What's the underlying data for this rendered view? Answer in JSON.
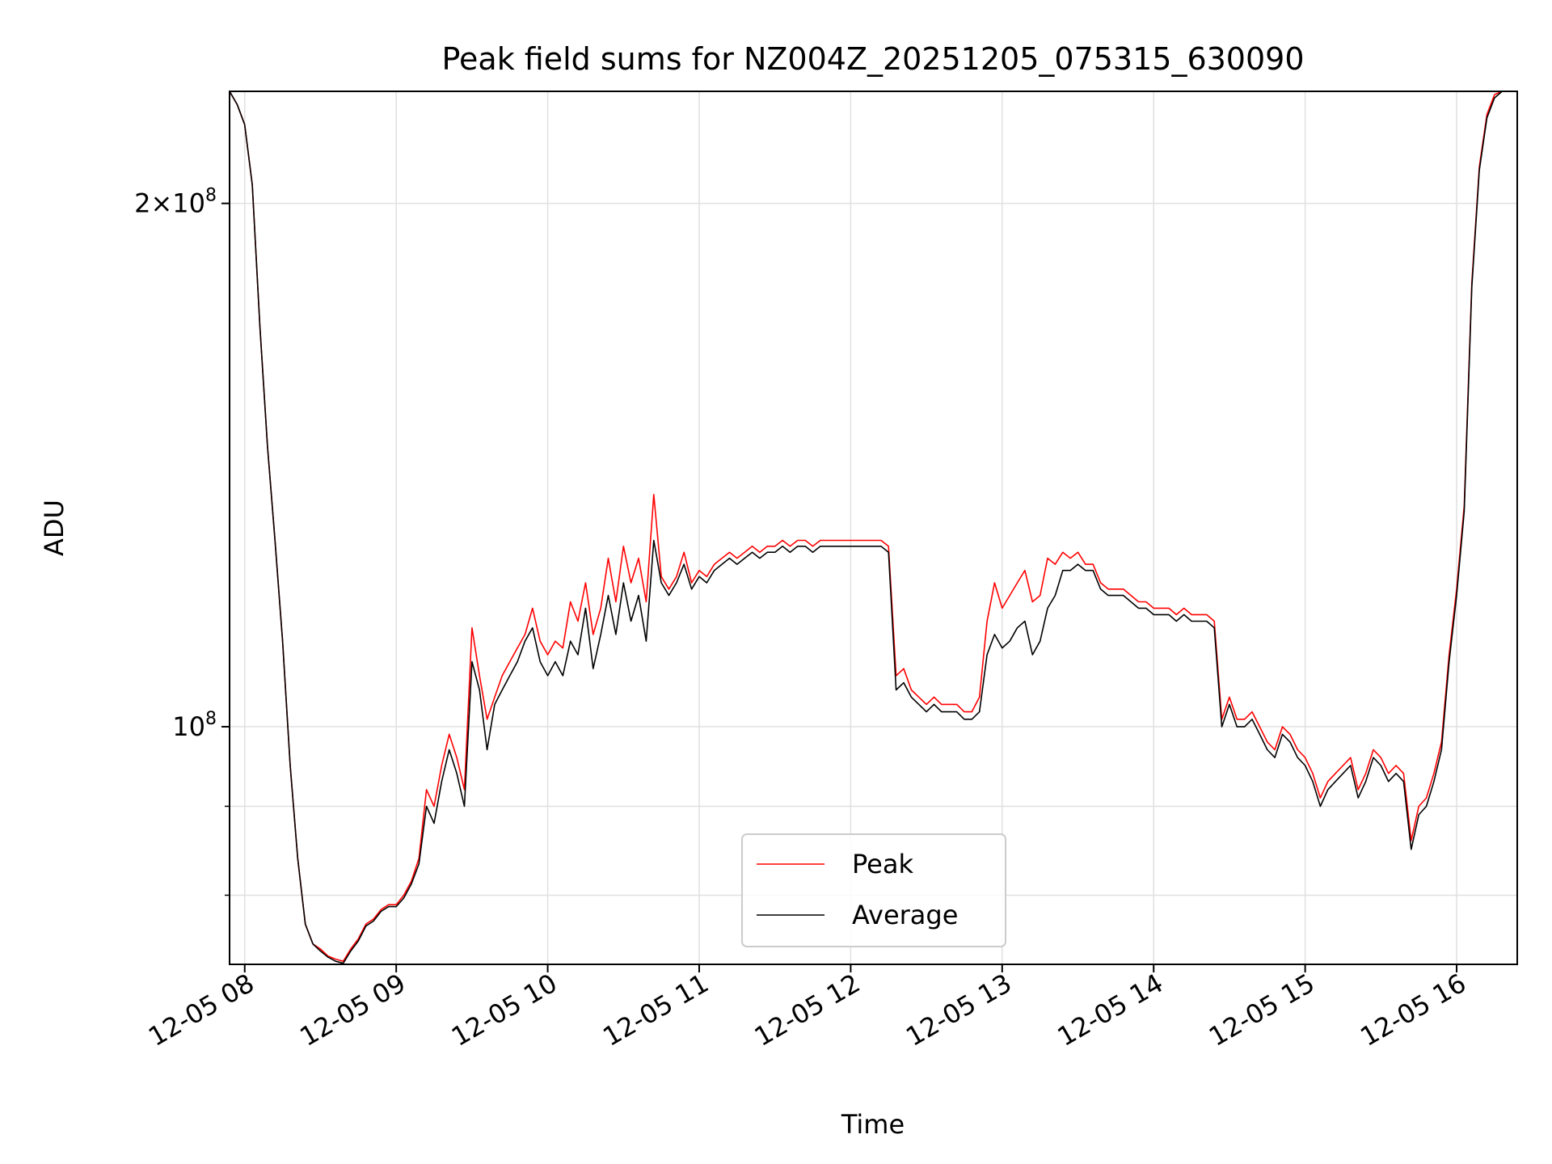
{
  "chart_data": {
    "type": "line",
    "title": "Peak field sums for NZ004Z_20251205_075315_630090",
    "xlabel": "Time",
    "ylabel": "ADU",
    "yscale": "log",
    "grid": true,
    "legend_position": "lower center",
    "xlim": [
      7.9,
      16.4
    ],
    "ylim": [
      73000000,
      232000000
    ],
    "x_ticks": [
      {
        "value": 8,
        "label": "12-05 08"
      },
      {
        "value": 9,
        "label": "12-05 09"
      },
      {
        "value": 10,
        "label": "12-05 10"
      },
      {
        "value": 11,
        "label": "12-05 11"
      },
      {
        "value": 12,
        "label": "12-05 12"
      },
      {
        "value": 13,
        "label": "12-05 13"
      },
      {
        "value": 14,
        "label": "12-05 14"
      },
      {
        "value": 15,
        "label": "12-05 15"
      },
      {
        "value": 16,
        "label": "12-05 16"
      }
    ],
    "y_major_ticks": [
      {
        "value": 100000000,
        "base": "10",
        "exp": "8",
        "coef": ""
      },
      {
        "value": 200000000,
        "base": "10",
        "exp": "8",
        "coef": "2"
      }
    ],
    "y_minor_ticks": [
      80000000,
      90000000
    ],
    "x_hours": [
      7.9,
      7.95,
      8.0,
      8.05,
      8.1,
      8.15,
      8.2,
      8.25,
      8.3,
      8.35,
      8.4,
      8.45,
      8.5,
      8.55,
      8.6,
      8.65,
      8.7,
      8.75,
      8.8,
      8.85,
      8.9,
      8.95,
      9.0,
      9.05,
      9.1,
      9.15,
      9.2,
      9.25,
      9.3,
      9.35,
      9.4,
      9.45,
      9.5,
      9.55,
      9.6,
      9.65,
      9.7,
      9.75,
      9.8,
      9.85,
      9.9,
      9.95,
      10.0,
      10.05,
      10.1,
      10.15,
      10.2,
      10.25,
      10.3,
      10.35,
      10.4,
      10.45,
      10.5,
      10.55,
      10.6,
      10.65,
      10.7,
      10.75,
      10.8,
      10.85,
      10.9,
      10.95,
      11.0,
      11.05,
      11.1,
      11.15,
      11.2,
      11.25,
      11.3,
      11.35,
      11.4,
      11.45,
      11.5,
      11.55,
      11.6,
      11.65,
      11.7,
      11.75,
      11.8,
      11.85,
      11.9,
      11.95,
      12.0,
      12.05,
      12.1,
      12.15,
      12.2,
      12.25,
      12.3,
      12.35,
      12.4,
      12.45,
      12.5,
      12.55,
      12.6,
      12.65,
      12.7,
      12.75,
      12.8,
      12.85,
      12.9,
      12.95,
      13.0,
      13.05,
      13.1,
      13.15,
      13.2,
      13.25,
      13.3,
      13.35,
      13.4,
      13.45,
      13.5,
      13.55,
      13.6,
      13.65,
      13.7,
      13.75,
      13.8,
      13.85,
      13.9,
      13.95,
      14.0,
      14.05,
      14.1,
      14.15,
      14.2,
      14.25,
      14.3,
      14.35,
      14.4,
      14.45,
      14.5,
      14.55,
      14.6,
      14.65,
      14.7,
      14.75,
      14.8,
      14.85,
      14.9,
      14.95,
      15.0,
      15.05,
      15.1,
      15.15,
      15.2,
      15.25,
      15.3,
      15.35,
      15.4,
      15.45,
      15.5,
      15.55,
      15.6,
      15.65,
      15.7,
      15.75,
      15.8,
      15.85,
      15.9,
      15.95,
      16.0,
      16.05,
      16.1,
      16.15,
      16.2,
      16.25,
      16.3,
      16.35,
      16.4
    ],
    "series": [
      {
        "name": "Peak",
        "color": "#ff0000",
        "values": [
          232000000,
          228000000,
          222000000,
          205000000,
          170000000,
          145000000,
          128000000,
          112000000,
          95000000,
          84000000,
          77000000,
          75000000,
          74500000,
          73800000,
          73500000,
          73300000,
          74500000,
          75500000,
          77000000,
          77500000,
          78500000,
          79000000,
          79000000,
          80000000,
          81500000,
          84000000,
          92000000,
          90000000,
          95000000,
          99000000,
          96000000,
          92000000,
          114000000,
          107000000,
          101000000,
          104000000,
          107000000,
          109000000,
          111000000,
          113000000,
          117000000,
          112000000,
          110000000,
          112000000,
          111000000,
          118000000,
          115000000,
          121000000,
          113000000,
          117000000,
          125000000,
          118000000,
          127000000,
          121000000,
          125000000,
          118000000,
          136000000,
          122000000,
          120000000,
          122000000,
          126000000,
          121000000,
          123000000,
          122000000,
          124000000,
          125000000,
          126000000,
          125000000,
          126000000,
          127000000,
          126000000,
          127000000,
          127000000,
          128000000,
          127000000,
          128000000,
          128000000,
          127000000,
          128000000,
          128000000,
          128000000,
          128000000,
          128000000,
          128000000,
          128000000,
          128000000,
          128000000,
          127000000,
          107000000,
          108000000,
          105000000,
          104000000,
          103000000,
          104000000,
          103000000,
          103000000,
          103000000,
          102000000,
          102000000,
          104000000,
          115000000,
          121000000,
          117000000,
          119000000,
          121000000,
          123000000,
          118000000,
          119000000,
          125000000,
          124000000,
          126000000,
          125000000,
          126000000,
          124000000,
          124000000,
          121000000,
          120000000,
          120000000,
          120000000,
          119000000,
          118000000,
          118000000,
          117000000,
          117000000,
          117000000,
          116000000,
          117000000,
          116000000,
          116000000,
          116000000,
          115000000,
          101000000,
          104000000,
          101000000,
          101000000,
          102000000,
          100000000,
          98000000,
          97000000,
          100000000,
          99000000,
          97000000,
          96000000,
          94000000,
          91000000,
          93000000,
          94000000,
          95000000,
          96000000,
          92000000,
          94000000,
          97000000,
          96000000,
          94000000,
          95000000,
          94000000,
          86000000,
          90000000,
          91000000,
          94000000,
          98000000,
          110000000,
          120000000,
          134000000,
          180000000,
          210000000,
          225000000,
          231000000,
          232000000,
          232000000,
          232000000
        ]
      },
      {
        "name": "Average",
        "color": "#000000",
        "values": [
          232000000,
          228000000,
          222000000,
          205000000,
          170000000,
          145000000,
          128000000,
          112000000,
          95000000,
          84000000,
          77000000,
          75000000,
          74300000,
          73700000,
          73300000,
          73100000,
          74300000,
          75300000,
          76800000,
          77300000,
          78300000,
          78800000,
          78800000,
          79700000,
          81200000,
          83400000,
          90000000,
          88000000,
          93000000,
          97000000,
          94000000,
          90000000,
          109000000,
          105000000,
          97000000,
          103000000,
          105000000,
          107000000,
          109000000,
          112000000,
          114000000,
          109000000,
          107000000,
          109000000,
          107000000,
          112000000,
          110000000,
          117000000,
          108000000,
          113000000,
          119000000,
          113000000,
          121000000,
          115000000,
          119000000,
          112000000,
          128000000,
          121000000,
          119000000,
          121000000,
          124000000,
          120000000,
          122000000,
          121000000,
          123000000,
          124000000,
          125000000,
          124000000,
          125000000,
          126000000,
          125000000,
          126000000,
          126000000,
          127000000,
          126000000,
          127000000,
          127000000,
          126000000,
          127000000,
          127000000,
          127000000,
          127000000,
          127000000,
          127000000,
          127000000,
          127000000,
          127000000,
          126000000,
          105000000,
          106000000,
          104000000,
          103000000,
          102000000,
          103000000,
          102000000,
          102000000,
          102000000,
          101000000,
          101000000,
          102000000,
          110000000,
          113000000,
          111000000,
          112000000,
          114000000,
          115000000,
          110000000,
          112000000,
          117000000,
          119000000,
          123000000,
          123000000,
          124000000,
          123000000,
          123000000,
          120000000,
          119000000,
          119000000,
          119000000,
          118000000,
          117000000,
          117000000,
          116000000,
          116000000,
          116000000,
          115000000,
          116000000,
          115000000,
          115000000,
          115000000,
          114000000,
          100000000,
          103000000,
          100000000,
          100000000,
          101000000,
          99000000,
          97000000,
          96000000,
          99000000,
          98000000,
          96000000,
          95000000,
          93000000,
          90000000,
          92000000,
          93000000,
          94000000,
          95000000,
          91000000,
          93000000,
          96000000,
          95000000,
          93000000,
          94000000,
          93000000,
          85000000,
          89000000,
          90000000,
          93000000,
          97000000,
          109000000,
          119000000,
          133000000,
          179000000,
          209000000,
          224000000,
          230000000,
          232000000,
          232000000,
          232000000
        ]
      }
    ]
  }
}
